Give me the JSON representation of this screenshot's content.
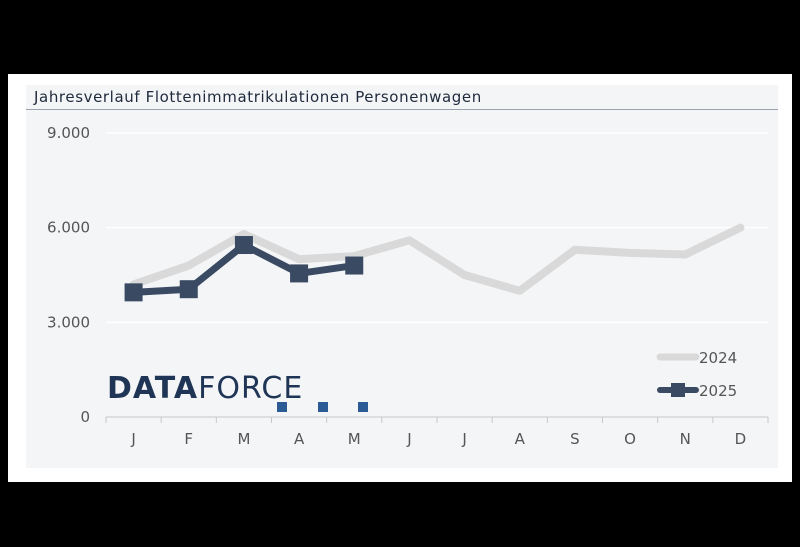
{
  "brand": {
    "name_bold": "DATA",
    "name_light": "FORCE",
    "color_dark": "#1f3556",
    "color_blue": "#2c5a95"
  },
  "chart_data": {
    "type": "line",
    "title": "Jahresverlauf Flottenimmatrikulationen Personenwagen",
    "categories": [
      "J",
      "F",
      "M",
      "A",
      "M",
      "J",
      "J",
      "A",
      "S",
      "O",
      "N",
      "D"
    ],
    "ylim": [
      0,
      9000
    ],
    "yticks": [
      "0",
      "3.000",
      "6.000",
      "9.000"
    ],
    "ytick_values": [
      0,
      3000,
      6000,
      9000
    ],
    "grid": true,
    "legend_position": "bottom-right",
    "series": [
      {
        "name": "2024",
        "color": "#d9d9d9",
        "marker": "none",
        "values": [
          4200,
          4800,
          5800,
          5000,
          5100,
          5600,
          4500,
          4000,
          5300,
          5200,
          5150,
          6000
        ]
      },
      {
        "name": "2025",
        "color": "#3a4a63",
        "marker": "square",
        "values": [
          3950,
          4050,
          5450,
          4550,
          4800,
          null,
          null,
          null,
          null,
          null,
          null,
          null
        ]
      }
    ]
  }
}
